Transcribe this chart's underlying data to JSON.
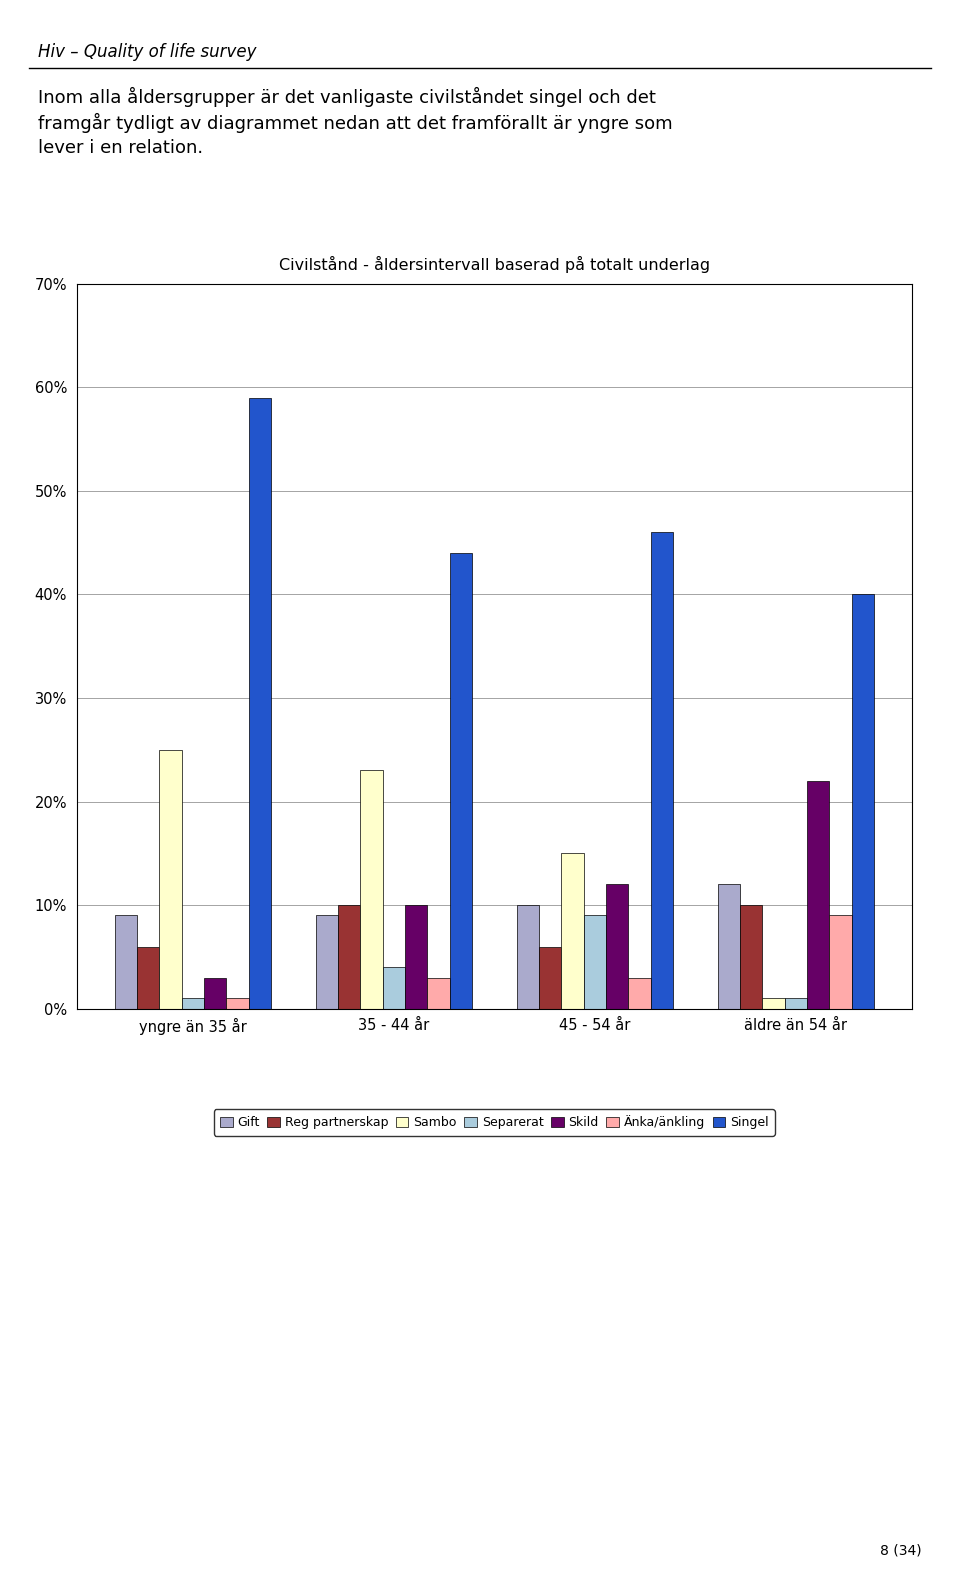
{
  "title": "Civilstånd - åldersintervall baserad på totalt underlag",
  "header": "Hiv – Quality of life survey",
  "body_text": "Inom alla åldersgrupper är det vanligaste civilståndet singel och det\nframgår tydligt av diagrammet nedan att det framförallt är yngre som\nlever i en relation.",
  "categories": [
    "yngre än 35 år",
    "35 - 44 år",
    "45 - 54 år",
    "äldre än 54 år"
  ],
  "series": [
    {
      "label": "Gift",
      "color": "#AAAACC",
      "values": [
        0.09,
        0.09,
        0.1,
        0.12
      ]
    },
    {
      "label": "Reg partnerskap",
      "color": "#993333",
      "values": [
        0.06,
        0.1,
        0.06,
        0.1
      ]
    },
    {
      "label": "Sambo",
      "color": "#FFFFCC",
      "values": [
        0.25,
        0.23,
        0.15,
        0.01
      ]
    },
    {
      "label": "Separerat",
      "color": "#AACCDD",
      "values": [
        0.01,
        0.04,
        0.09,
        0.01
      ]
    },
    {
      "label": "Skild",
      "color": "#660066",
      "values": [
        0.03,
        0.1,
        0.12,
        0.22
      ]
    },
    {
      "label": "Änka/änkling",
      "color": "#FFAAAA",
      "values": [
        0.01,
        0.03,
        0.03,
        0.09
      ]
    },
    {
      "label": "Singel",
      "color": "#2255CC",
      "values": [
        0.59,
        0.44,
        0.46,
        0.4
      ]
    }
  ],
  "ylim": [
    0,
    0.7
  ],
  "yticks": [
    0.0,
    0.1,
    0.2,
    0.3,
    0.4,
    0.5,
    0.6,
    0.7
  ],
  "ytick_labels": [
    "0%",
    "10%",
    "20%",
    "30%",
    "40%",
    "50%",
    "60%",
    "70%"
  ],
  "chart_background": "#FFFFFF",
  "page_background": "#FFFFFF",
  "fig_width": 9.6,
  "fig_height": 15.76,
  "page_number": "8 (34)"
}
